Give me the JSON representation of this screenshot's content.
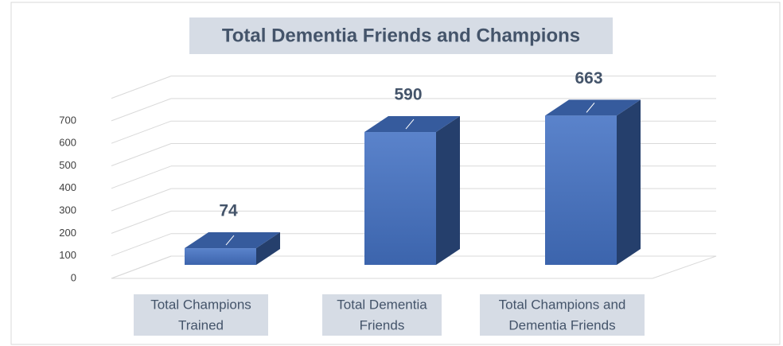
{
  "chart_data": {
    "type": "bar3d",
    "title": "Total Dementia Friends and Champions",
    "categories": [
      [
        "Total Champions",
        "Trained"
      ],
      [
        "Total Dementia",
        "Friends"
      ],
      [
        "Total Champions and",
        "Dementia Friends"
      ]
    ],
    "values": [
      74,
      590,
      663
    ],
    "color": "#4472c4",
    "ylim": [
      0,
      800
    ],
    "yticks": [
      0,
      100,
      200,
      300,
      400,
      500,
      600,
      700
    ],
    "grid": true
  }
}
